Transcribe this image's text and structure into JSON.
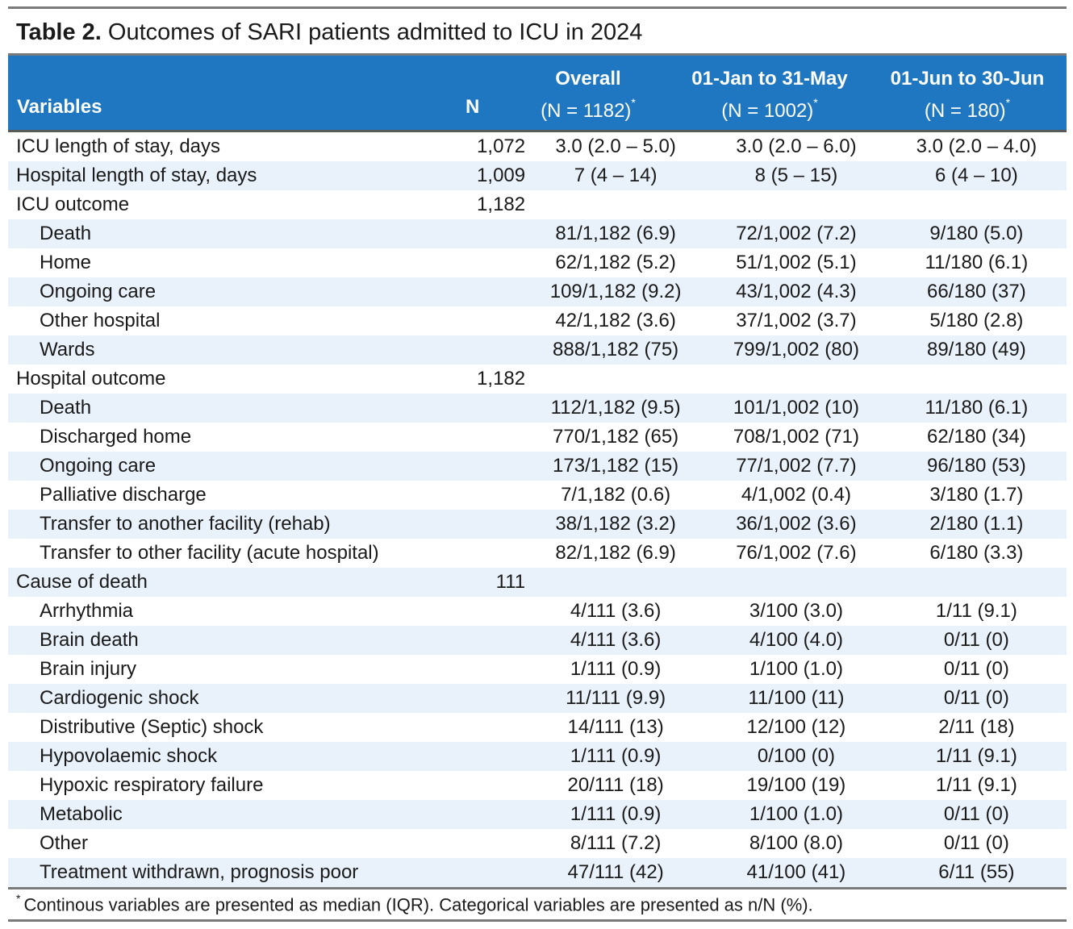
{
  "title": {
    "bold": "Table 2.",
    "rest": "Outcomes of SARI patients admitted to ICU in 2024"
  },
  "header": {
    "variables": "Variables",
    "n": "N",
    "overall": {
      "label": "Overall",
      "sub": "(N = 1182)",
      "mark": "*"
    },
    "period1": {
      "label": "01-Jan to 31-May",
      "sub": "(N = 1002)",
      "mark": "*"
    },
    "period2": {
      "label": "01-Jun to 30-Jun",
      "sub": "(N = 180)",
      "mark": "*"
    }
  },
  "rows": [
    {
      "var": "ICU length of stay, days",
      "n": "1,072",
      "c1": "3.0 (2.0 – 5.0)",
      "c2": "3.0 (2.0 – 6.0)",
      "c3": "3.0 (2.0 – 4.0)"
    },
    {
      "var": "Hospital length of stay, days",
      "n": "1,009",
      "c1": "7 (4 – 14)",
      "c2": "8 (5 – 15)",
      "c3": "6 (4 – 10)"
    },
    {
      "var": "ICU outcome",
      "n": "1,182",
      "c1": "",
      "c2": "",
      "c3": ""
    },
    {
      "var": "Death",
      "n": "",
      "c1": "81/1,182 (6.9)",
      "c2": "72/1,002 (7.2)",
      "c3": "9/180 (5.0)"
    },
    {
      "var": "Home",
      "n": "",
      "c1": "62/1,182 (5.2)",
      "c2": "51/1,002 (5.1)",
      "c3": "11/180 (6.1)"
    },
    {
      "var": "Ongoing care",
      "n": "",
      "c1": "109/1,182 (9.2)",
      "c2": "43/1,002 (4.3)",
      "c3": "66/180 (37)"
    },
    {
      "var": "Other hospital",
      "n": "",
      "c1": "42/1,182 (3.6)",
      "c2": "37/1,002 (3.7)",
      "c3": "5/180 (2.8)"
    },
    {
      "var": "Wards",
      "n": "",
      "c1": "888/1,182 (75)",
      "c2": "799/1,002 (80)",
      "c3": "89/180 (49)"
    },
    {
      "var": "Hospital outcome",
      "n": "1,182",
      "c1": "",
      "c2": "",
      "c3": ""
    },
    {
      "var": "Death",
      "n": "",
      "c1": "112/1,182 (9.5)",
      "c2": "101/1,002 (10)",
      "c3": "11/180 (6.1)"
    },
    {
      "var": "Discharged home",
      "n": "",
      "c1": "770/1,182 (65)",
      "c2": "708/1,002 (71)",
      "c3": "62/180 (34)"
    },
    {
      "var": "Ongoing care",
      "n": "",
      "c1": "173/1,182 (15)",
      "c2": "77/1,002 (7.7)",
      "c3": "96/180 (53)"
    },
    {
      "var": "Palliative discharge",
      "n": "",
      "c1": "7/1,182 (0.6)",
      "c2": "4/1,002 (0.4)",
      "c3": "3/180 (1.7)"
    },
    {
      "var": "Transfer to another facility (rehab)",
      "n": "",
      "c1": "38/1,182 (3.2)",
      "c2": "36/1,002 (3.6)",
      "c3": "2/180 (1.1)"
    },
    {
      "var": "Transfer to other facility (acute hospital)",
      "n": "",
      "c1": "82/1,182 (6.9)",
      "c2": "76/1,002 (7.6)",
      "c3": "6/180 (3.3)"
    },
    {
      "var": "Cause of death",
      "n": "111",
      "c1": "",
      "c2": "",
      "c3": ""
    },
    {
      "var": "Arrhythmia",
      "n": "",
      "c1": "4/111 (3.6)",
      "c2": "3/100 (3.0)",
      "c3": "1/11 (9.1)"
    },
    {
      "var": "Brain death",
      "n": "",
      "c1": "4/111 (3.6)",
      "c2": "4/100 (4.0)",
      "c3": "0/11 (0)"
    },
    {
      "var": "Brain injury",
      "n": "",
      "c1": "1/111 (0.9)",
      "c2": "1/100 (1.0)",
      "c3": "0/11 (0)"
    },
    {
      "var": "Cardiogenic shock",
      "n": "",
      "c1": "11/111 (9.9)",
      "c2": "11/100 (11)",
      "c3": "0/11 (0)"
    },
    {
      "var": "Distributive (Septic) shock",
      "n": "",
      "c1": "14/111 (13)",
      "c2": "12/100 (12)",
      "c3": "2/11 (18)"
    },
    {
      "var": "Hypovolaemic shock",
      "n": "",
      "c1": "1/111 (0.9)",
      "c2": "0/100 (0)",
      "c3": "1/11 (9.1)"
    },
    {
      "var": "Hypoxic respiratory failure",
      "n": "",
      "c1": "20/111 (18)",
      "c2": "19/100 (19)",
      "c3": "1/11 (9.1)"
    },
    {
      "var": "Metabolic",
      "n": "",
      "c1": "1/111 (0.9)",
      "c2": "1/100 (1.0)",
      "c3": "0/11 (0)"
    },
    {
      "var": "Other",
      "n": "",
      "c1": "8/111 (7.2)",
      "c2": "8/100 (8.0)",
      "c3": "0/11 (0)"
    },
    {
      "var": "Treatment withdrawn, prognosis poor",
      "n": "",
      "c1": "47/111 (42)",
      "c2": "41/100 (41)",
      "c3": "6/11 (55)"
    }
  ],
  "footnote": {
    "mark": "*",
    "text": "Continous variables are presented as median (IQR). Categorical variables are presented as n/N (%)."
  },
  "colors": {
    "header_bg": "#1f77c2",
    "row_shade": "#e9f1fa",
    "rule": "#7a7a7a"
  }
}
